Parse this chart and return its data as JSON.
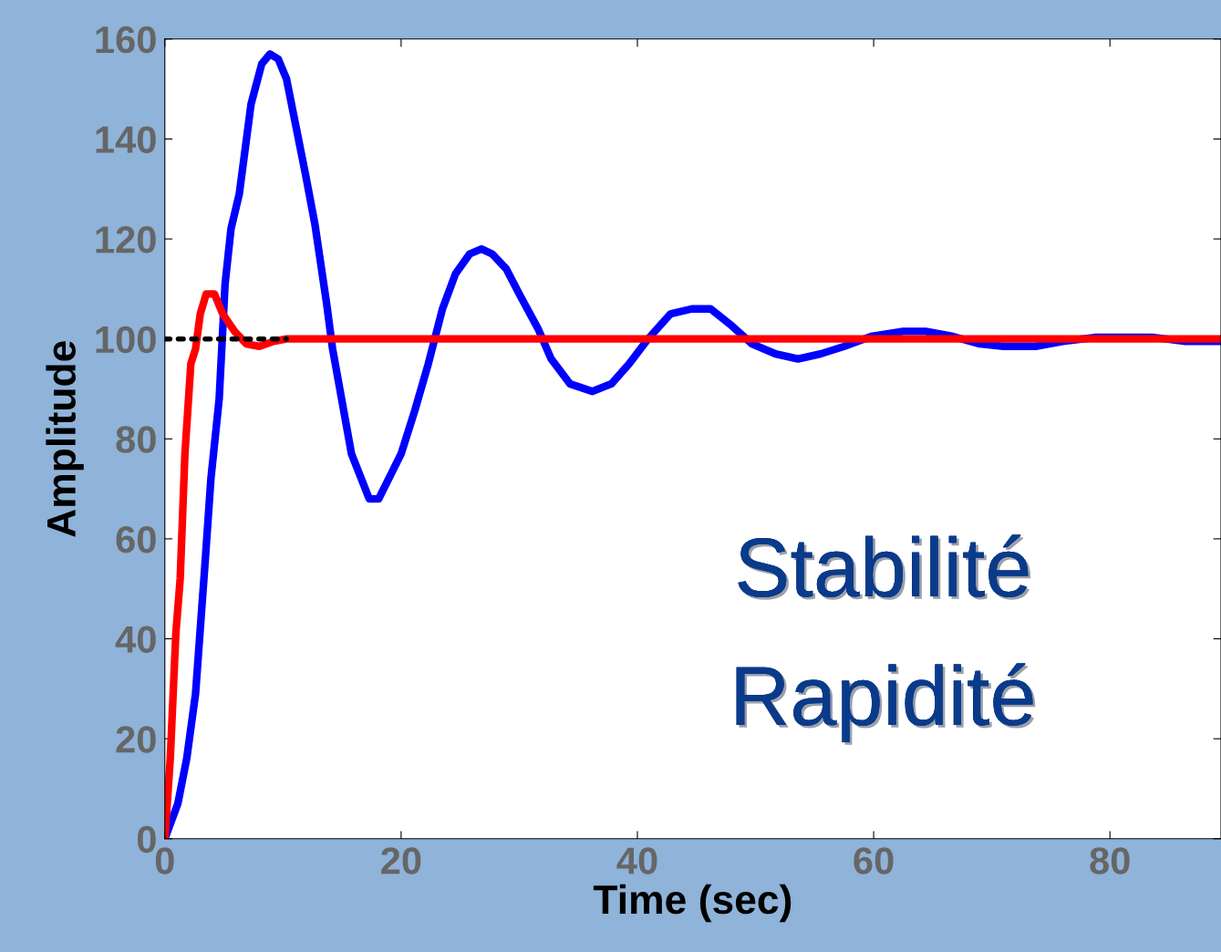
{
  "chart_data": {
    "type": "line",
    "xlabel": "Time (sec)",
    "ylabel": "Amplitude",
    "xlim": [
      0,
      89.4
    ],
    "xticks": [
      0,
      20,
      40,
      60,
      80
    ],
    "ylim": [
      0,
      160
    ],
    "yticks": [
      0,
      20,
      40,
      60,
      80,
      100,
      120,
      140,
      160
    ],
    "grid": false,
    "line_style": "solid",
    "marker": "none",
    "annotations": [
      "Stabilité",
      "Rapidité"
    ],
    "series": [
      {
        "color": "#000000",
        "line_style": "dotted",
        "x": [
          0,
          10.3
        ],
        "values": [
          100,
          100
        ]
      },
      {
        "color": "#0000ff",
        "x": [
          0,
          1.1,
          1.85,
          2.6,
          3.4,
          3.9,
          4.6,
          5.1,
          5.6,
          6.3,
          7.3,
          8.2,
          8.9,
          9.6,
          10.3,
          11.9,
          12.7,
          13.7,
          14.2,
          15.8,
          17.3,
          18.1,
          20,
          21.2,
          22.3,
          23.5,
          24.6,
          25.8,
          26.8,
          27.7,
          28.9,
          30,
          31.6,
          32.7,
          34.3,
          36.2,
          37.8,
          39.3,
          40.9,
          42.8,
          44.6,
          46.2,
          47.8,
          49.7,
          51.7,
          53.6,
          55.5,
          57.5,
          59.8,
          62.5,
          64.4,
          66.7,
          69,
          71,
          73.7,
          76,
          78.7,
          83.7,
          86.4,
          89.4
        ],
        "values": [
          0,
          7,
          16,
          29,
          55,
          72,
          88,
          111,
          122,
          129,
          147,
          155,
          157,
          156,
          152,
          133,
          123,
          107,
          98,
          77,
          68,
          68,
          77,
          86,
          95,
          106,
          113,
          117,
          118,
          117,
          114,
          109,
          102,
          96,
          91,
          89.5,
          91,
          95,
          100,
          105,
          106,
          106,
          103,
          99,
          97,
          96,
          97,
          98.5,
          100.5,
          101.5,
          101.5,
          100.5,
          99,
          98.5,
          98.5,
          99.5,
          100.3,
          100.3,
          99.5,
          99.5
        ]
      },
      {
        "color": "#ff0000",
        "x": [
          0,
          0.46,
          0.93,
          1.3,
          1.7,
          2.2,
          2.6,
          3,
          3.5,
          4.2,
          4.9,
          5.9,
          6.9,
          8,
          9.2,
          10.3,
          89.4
        ],
        "values": [
          0,
          16,
          41,
          52,
          77,
          95,
          98,
          105,
          109,
          109,
          105,
          101.5,
          99,
          98.5,
          99.5,
          100,
          100
        ]
      }
    ]
  }
}
